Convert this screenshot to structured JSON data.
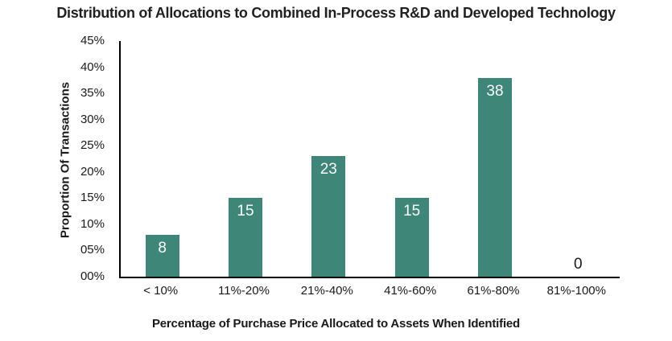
{
  "chart_data": {
    "type": "bar",
    "title": "Distribution of Allocations to Combined In-Process R&D and Developed Technology",
    "xlabel": "Percentage of Purchase Price Allocated to Assets When Identified",
    "ylabel": "Proportion Of Transactions",
    "categories": [
      "< 10%",
      "11%-20%",
      "21%-40%",
      "41%-60%",
      "61%-80%",
      "81%-100%"
    ],
    "values": [
      8,
      15,
      23,
      15,
      38,
      0
    ],
    "value_labels": [
      "8",
      "15",
      "23",
      "15",
      "38",
      "0"
    ],
    "ytick_labels_top_down": [
      "45%",
      "40%",
      "35%",
      "30%",
      "25%",
      "20%",
      "15%",
      "10%",
      "05%",
      "00%"
    ],
    "ylim": [
      0,
      45
    ],
    "grid": false,
    "legend": null,
    "colors": {
      "bar": "#3E8677",
      "bar_label_inside": "#FFFFFF",
      "bar_label_zero": "#1A1A1A",
      "axis_line": "#000000",
      "text": "#1A1A1A",
      "title_text": "#212121",
      "background": "#FFFFFF"
    }
  }
}
